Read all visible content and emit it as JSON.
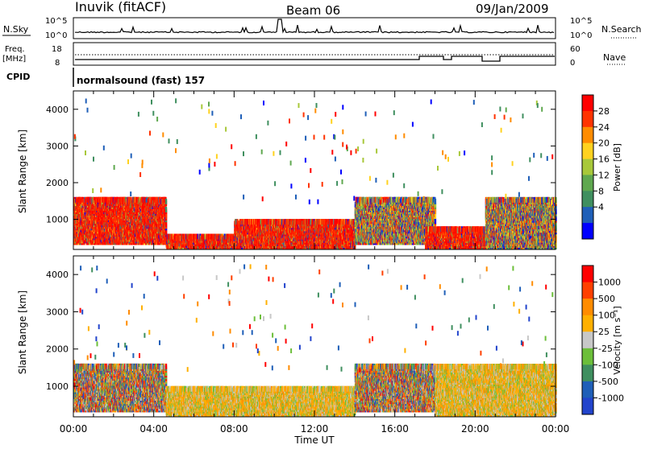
{
  "header": {
    "station": "Inuvik (fitACF)",
    "beam": "Beam 06",
    "date": "09/Jan/2009"
  },
  "top_panels": {
    "nsky_label": "N.Sky",
    "nsky_ticks": [
      "10^5",
      "10^0"
    ],
    "nsearch_label": "N.Search",
    "nsearch_ticks": [
      "10^5",
      "10^0"
    ],
    "freq_label": "Freq.",
    "freq_unit": "[MHz]",
    "freq_ticks": [
      "18",
      "8"
    ],
    "nave_label": "Nave",
    "nave_ticks": [
      "60",
      "0"
    ],
    "cpid_label": "CPID",
    "cpid_value": "normalsound (fast) 157"
  },
  "chart_data": [
    {
      "type": "heatmap",
      "quantity": "Power",
      "ylabel": "Slant Range [km]",
      "ylim": [
        180,
        4500
      ],
      "yticks": [
        "1000",
        "2000",
        "3000",
        "4000"
      ],
      "xlim": [
        "00:00",
        "24:00"
      ],
      "colorbar": {
        "label": "Power [dB]",
        "ticks": [
          "28",
          "24",
          "20",
          "16",
          "12",
          "8",
          "4"
        ],
        "range": [
          0,
          32
        ],
        "colors": [
          "#0000ff",
          "#1f5fb8",
          "#3f8f5f",
          "#5fa84f",
          "#a8c83a",
          "#ffd21f",
          "#ff8c00",
          "#ff3300",
          "#ff0000"
        ]
      },
      "regions": [
        {
          "t0": 0.0,
          "t1": 4.6,
          "r0": 300,
          "r1": 1500,
          "level": "high"
        },
        {
          "t0": 4.6,
          "t1": 8.0,
          "r0": 180,
          "r1": 500,
          "level": "high"
        },
        {
          "t0": 8.0,
          "t1": 14.0,
          "r0": 180,
          "r1": 900,
          "level": "high"
        },
        {
          "t0": 14.0,
          "t1": 18.0,
          "r0": 300,
          "r1": 1500,
          "level": "medium"
        },
        {
          "t0": 17.5,
          "t1": 20.5,
          "r0": 180,
          "r1": 700,
          "level": "high"
        },
        {
          "t0": 20.5,
          "t1": 24.0,
          "r0": 180,
          "r1": 1500,
          "level": "medium"
        }
      ]
    },
    {
      "type": "heatmap",
      "quantity": "Velocity",
      "ylabel": "Slant Range [km]",
      "ylim": [
        180,
        4500
      ],
      "yticks": [
        "1000",
        "2000",
        "3000",
        "4000"
      ],
      "xlim": [
        "00:00",
        "24:00"
      ],
      "xticks": [
        "00:00",
        "04:00",
        "08:00",
        "12:00",
        "16:00",
        "20:00",
        "00:00"
      ],
      "xlabel": "Time UT",
      "colorbar": {
        "label": "Velocity [m s⁻¹]",
        "ticks": [
          "1000",
          "500",
          "100",
          "25",
          "-25",
          "-100",
          "-500",
          "-1000"
        ],
        "colors": [
          "#2244cc",
          "#1f5fb8",
          "#3f8f5f",
          "#6cbf3a",
          "#c8c8c8",
          "#ffb000",
          "#ff8c00",
          "#ff4000",
          "#ff0000"
        ]
      },
      "regions": [
        {
          "t0": 0.0,
          "t1": 4.6,
          "r0": 300,
          "r1": 1500,
          "level": "mixed"
        },
        {
          "t0": 4.6,
          "t1": 14.0,
          "r0": 180,
          "r1": 900,
          "level": "low"
        },
        {
          "t0": 14.0,
          "t1": 18.0,
          "r0": 300,
          "r1": 1500,
          "level": "mixed"
        },
        {
          "t0": 18.0,
          "t1": 24.0,
          "r0": 180,
          "r1": 1500,
          "level": "low"
        }
      ]
    }
  ]
}
